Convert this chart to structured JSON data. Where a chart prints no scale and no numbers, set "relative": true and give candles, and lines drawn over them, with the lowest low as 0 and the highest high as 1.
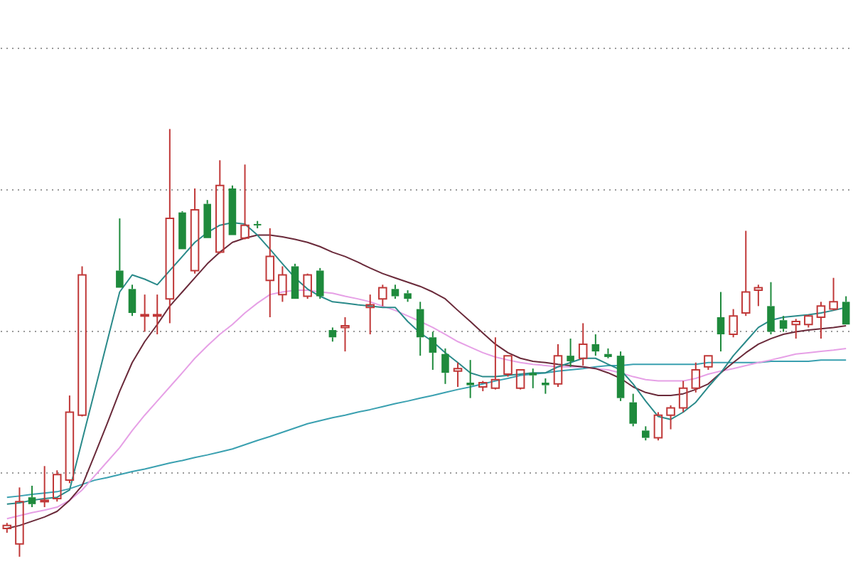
{
  "chart_data": {
    "type": "candlestick",
    "relative": true,
    "grid": "y",
    "categories": [
      null,
      null,
      null,
      null,
      null,
      null,
      null,
      null,
      null,
      null,
      null,
      null,
      null,
      null,
      null,
      null,
      null,
      null,
      null,
      null,
      null,
      null,
      null,
      null,
      null,
      null,
      null,
      null,
      null,
      null,
      null,
      null,
      null,
      null,
      null,
      null,
      null,
      null,
      null,
      null,
      null,
      null,
      null,
      null,
      null,
      null,
      null,
      null,
      null,
      null,
      null,
      null,
      null,
      null,
      null,
      null,
      null,
      null,
      null,
      null,
      null,
      null,
      null,
      null,
      null,
      null,
      null,
      null
    ],
    "ohlc": [
      [
        0.066,
        0.079,
        0.056,
        0.073
      ],
      [
        0.03,
        0.162,
        0,
        0.129
      ],
      [
        0.139,
        0.166,
        0.116,
        0.123
      ],
      [
        0.129,
        0.212,
        0.116,
        0.132
      ],
      [
        0.136,
        0.202,
        0.129,
        0.192
      ],
      [
        0.179,
        0.377,
        0.172,
        0.338
      ],
      [
        0.331,
        0.679,
        0.328,
        0.659
      ],
      null,
      null,
      [
        0.669,
        0.791,
        0.629,
        0.629
      ],
      [
        0.626,
        0.636,
        0.563,
        0.57
      ],
      [
        0.563,
        0.613,
        0.526,
        0.566
      ],
      [
        0.563,
        0.613,
        0.52,
        0.566
      ],
      [
        0.603,
        1,
        0.546,
        0.791
      ],
      [
        0.805,
        0.808,
        0.719,
        0.719
      ],
      [
        0.669,
        0.861,
        0.662,
        0.811
      ],
      [
        0.825,
        0.834,
        0.745,
        0.745
      ],
      [
        0.712,
        0.927,
        0.709,
        0.868
      ],
      [
        0.861,
        0.868,
        0.752,
        0.752
      ],
      [
        0.745,
        0.917,
        0.742,
        0.775
      ],
      [
        0.778,
        0.785,
        0.768,
        0.775
      ],
      [
        0.646,
        0.768,
        0.56,
        0.702
      ],
      [
        0.613,
        0.679,
        0.596,
        0.659
      ],
      [
        0.679,
        0.685,
        0.603,
        0.603
      ],
      [
        0.609,
        0.662,
        0.603,
        0.659
      ],
      [
        0.669,
        0.675,
        0.603,
        0.609
      ],
      [
        0.53,
        0.536,
        0.503,
        0.513
      ],
      [
        0.536,
        0.56,
        0.48,
        0.54
      ],
      null,
      [
        0.583,
        0.613,
        0.52,
        0.589
      ],
      [
        0.603,
        0.636,
        0.586,
        0.629
      ],
      [
        0.626,
        0.636,
        0.603,
        0.609
      ],
      [
        0.616,
        0.623,
        0.596,
        0.603
      ],
      [
        0.579,
        0.596,
        0.47,
        0.513
      ],
      [
        0.513,
        0.526,
        0.437,
        0.477
      ],
      [
        0.474,
        0.487,
        0.404,
        0.43
      ],
      [
        0.434,
        0.454,
        0.397,
        0.44
      ],
      [
        0.407,
        0.46,
        0.371,
        0.401
      ],
      [
        0.397,
        0.411,
        0.387,
        0.407
      ],
      [
        0.394,
        0.513,
        0.391,
        0.414
      ],
      [
        0.427,
        0.47,
        0.421,
        0.47
      ],
      [
        0.394,
        0.437,
        0.391,
        0.437
      ],
      [
        0.43,
        0.44,
        0.394,
        0.424
      ],
      [
        0.407,
        0.417,
        0.381,
        0.401
      ],
      [
        0.404,
        0.497,
        0.397,
        0.47
      ],
      [
        0.47,
        0.51,
        0.444,
        0.457
      ],
      [
        0.464,
        0.546,
        0.447,
        0.497
      ],
      [
        0.497,
        0.52,
        0.47,
        0.48
      ],
      [
        0.474,
        0.487,
        0.464,
        0.467
      ],
      [
        0.47,
        0.48,
        0.364,
        0.371
      ],
      [
        0.361,
        0.381,
        0.305,
        0.311
      ],
      [
        0.295,
        0.305,
        0.272,
        0.278
      ],
      [
        0.278,
        0.338,
        0.272,
        0.331
      ],
      [
        0.331,
        0.354,
        0.298,
        0.348
      ],
      [
        0.348,
        0.411,
        0.338,
        0.394
      ],
      [
        0.394,
        0.454,
        0.384,
        0.437
      ],
      [
        0.444,
        0.47,
        0.437,
        0.47
      ],
      [
        0.56,
        0.619,
        0.48,
        0.52
      ],
      [
        0.52,
        0.579,
        0.513,
        0.563
      ],
      [
        0.57,
        0.762,
        0.563,
        0.619
      ],
      [
        0.623,
        0.636,
        0.586,
        0.629
      ],
      [
        0.586,
        0.642,
        0.52,
        0.526
      ],
      [
        0.553,
        0.563,
        0.526,
        0.533
      ],
      [
        0.543,
        0.556,
        0.51,
        0.55
      ],
      [
        0.543,
        0.566,
        0.536,
        0.563
      ],
      [
        0.56,
        0.596,
        0.51,
        0.586
      ],
      [
        0.579,
        0.652,
        0.576,
        0.596
      ],
      [
        0.596,
        0.609,
        0.543,
        0.543
      ]
    ],
    "colors": [
      "#c03838",
      "#c03838",
      "#1e8a3c",
      "#c03838",
      "#c03838",
      "#c03838",
      "#c03838",
      null,
      null,
      "#1e8a3c",
      "#1e8a3c",
      "#c03838",
      "#c03838",
      "#c03838",
      "#1e8a3c",
      "#c03838",
      "#1e8a3c",
      "#c03838",
      "#1e8a3c",
      "#c03838",
      "#1e8a3c",
      "#c03838",
      "#c03838",
      "#1e8a3c",
      "#c03838",
      "#1e8a3c",
      "#1e8a3c",
      "#c03838",
      null,
      "#c03838",
      "#c03838",
      "#1e8a3c",
      "#1e8a3c",
      "#1e8a3c",
      "#1e8a3c",
      "#1e8a3c",
      "#c03838",
      "#1e8a3c",
      "#c03838",
      "#c03838",
      "#c03838",
      "#c03838",
      "#1e8a3c",
      "#1e8a3c",
      "#c03838",
      "#1e8a3c",
      "#c03838",
      "#1e8a3c",
      "#1e8a3c",
      "#1e8a3c",
      "#1e8a3c",
      "#1e8a3c",
      "#c03838",
      "#c03838",
      "#c03838",
      "#c03838",
      "#c03838",
      "#1e8a3c",
      "#c03838",
      "#c03838",
      "#c03838",
      "#1e8a3c",
      "#1e8a3c",
      "#c03838",
      "#c03838",
      "#c03838",
      "#c03838",
      "#1e8a3c"
    ],
    "series": [
      {
        "type": "line",
        "color": "#2a8a8a",
        "values": [
          0.123,
          0.126,
          0.132,
          0.136,
          0.139,
          0.156,
          0.272,
          0.387,
          0.503,
          0.619,
          0.659,
          0.649,
          0.636,
          0.669,
          0.702,
          0.735,
          0.758,
          0.775,
          0.781,
          0.778,
          0.752,
          0.719,
          0.685,
          0.652,
          0.626,
          0.609,
          0.596,
          0.593,
          0.589,
          0.586,
          0.583,
          0.583,
          0.55,
          0.523,
          0.503,
          0.477,
          0.454,
          0.43,
          0.421,
          0.421,
          0.424,
          0.427,
          0.43,
          0.43,
          0.444,
          0.454,
          0.464,
          0.464,
          0.45,
          0.437,
          0.404,
          0.364,
          0.328,
          0.321,
          0.338,
          0.361,
          0.397,
          0.43,
          0.47,
          0.503,
          0.536,
          0.553,
          0.56,
          0.563,
          0.566,
          0.57,
          0.576,
          0.583
        ]
      },
      {
        "type": "line",
        "color": "#6a2a3a",
        "values": [
          0.066,
          0.073,
          0.083,
          0.093,
          0.106,
          0.132,
          0.166,
          0.238,
          0.311,
          0.387,
          0.454,
          0.503,
          0.543,
          0.586,
          0.619,
          0.652,
          0.685,
          0.712,
          0.735,
          0.745,
          0.752,
          0.752,
          0.748,
          0.742,
          0.735,
          0.725,
          0.712,
          0.702,
          0.689,
          0.675,
          0.662,
          0.652,
          0.642,
          0.632,
          0.619,
          0.603,
          0.576,
          0.55,
          0.523,
          0.497,
          0.477,
          0.464,
          0.457,
          0.454,
          0.45,
          0.447,
          0.444,
          0.44,
          0.43,
          0.417,
          0.397,
          0.384,
          0.377,
          0.377,
          0.381,
          0.391,
          0.404,
          0.43,
          0.454,
          0.477,
          0.497,
          0.51,
          0.52,
          0.526,
          0.53,
          0.533,
          0.536,
          0.54
        ]
      },
      {
        "type": "line",
        "color": "#e6a0e6",
        "values": [
          0.089,
          0.096,
          0.103,
          0.109,
          0.116,
          0.132,
          0.156,
          0.189,
          0.222,
          0.255,
          0.295,
          0.331,
          0.364,
          0.397,
          0.43,
          0.464,
          0.493,
          0.52,
          0.543,
          0.57,
          0.593,
          0.613,
          0.619,
          0.623,
          0.623,
          0.619,
          0.616,
          0.609,
          0.603,
          0.596,
          0.586,
          0.576,
          0.563,
          0.55,
          0.536,
          0.52,
          0.503,
          0.49,
          0.477,
          0.467,
          0.46,
          0.454,
          0.45,
          0.447,
          0.444,
          0.444,
          0.444,
          0.44,
          0.437,
          0.43,
          0.421,
          0.414,
          0.411,
          0.411,
          0.411,
          0.417,
          0.427,
          0.434,
          0.44,
          0.447,
          0.454,
          0.46,
          0.467,
          0.474,
          0.477,
          0.48,
          0.483,
          0.487
        ]
      },
      {
        "type": "line",
        "color": "#3aa0b0",
        "values": [
          0.139,
          0.142,
          0.146,
          0.149,
          0.152,
          0.159,
          0.169,
          0.179,
          0.185,
          0.192,
          0.199,
          0.205,
          0.212,
          0.219,
          0.225,
          0.232,
          0.238,
          0.245,
          0.252,
          0.262,
          0.272,
          0.281,
          0.291,
          0.301,
          0.311,
          0.318,
          0.325,
          0.331,
          0.338,
          0.344,
          0.351,
          0.358,
          0.364,
          0.371,
          0.377,
          0.384,
          0.391,
          0.397,
          0.404,
          0.411,
          0.417,
          0.424,
          0.427,
          0.43,
          0.434,
          0.437,
          0.44,
          0.444,
          0.447,
          0.447,
          0.45,
          0.45,
          0.45,
          0.45,
          0.45,
          0.45,
          0.454,
          0.454,
          0.454,
          0.454,
          0.454,
          0.457,
          0.457,
          0.457,
          0.457,
          0.46,
          0.46,
          0.46
        ]
      }
    ]
  }
}
